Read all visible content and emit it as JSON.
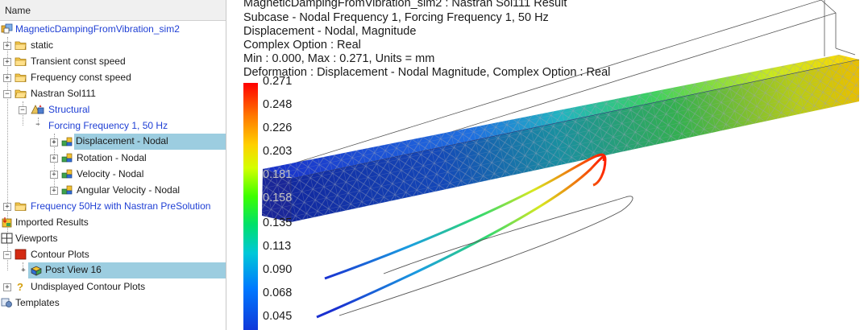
{
  "nav": {
    "header": "Name",
    "items": [
      {
        "label": "MagneticDampingFromVibration_sim2"
      },
      {
        "label": "static"
      },
      {
        "label": "Transient const speed"
      },
      {
        "label": "Frequency const speed"
      },
      {
        "label": "Nastran Sol111"
      },
      {
        "label": "Structural"
      },
      {
        "label": "Forcing Frequency 1, 50 Hz"
      },
      {
        "label": "Displacement - Nodal"
      },
      {
        "label": "Rotation - Nodal"
      },
      {
        "label": "Velocity - Nodal"
      },
      {
        "label": "Angular Velocity - Nodal"
      },
      {
        "label": "Frequency 50Hz with Nastran PreSolution"
      },
      {
        "label": "Imported Results"
      },
      {
        "label": "Viewports"
      },
      {
        "label": "Contour Plots"
      },
      {
        "label": "Post View 16"
      },
      {
        "label": "Undisplayed Contour Plots"
      },
      {
        "label": "Templates"
      }
    ]
  },
  "viewport": {
    "info_lines": [
      "MagneticDampingFromVibration_sim2 : Nastran Sol111 Result",
      "Subcase - Nodal Frequency 1, Forcing Frequency 1, 50 Hz",
      "Displacement - Nodal, Magnitude",
      "Complex Option : Real",
      "Min : 0.000, Max : 0.271, Units = mm",
      "Deformation : Displacement - Nodal Magnitude, Complex Option : Real"
    ],
    "legend_values": [
      "0.271",
      "0.248",
      "0.226",
      "0.203",
      "0.181",
      "0.158",
      "0.135",
      "0.113",
      "0.090",
      "0.068",
      "0.045"
    ]
  },
  "colors": {
    "selection": "#9ccde0",
    "link_blue": "#1f3fd4",
    "contour_plot_red": "#d42a12"
  },
  "icons": {
    "sim": "sim-file-icon",
    "folder": "folder-icon",
    "structural": "structural-solution-icon",
    "result": "result-icon",
    "imported": "imported-results-icon",
    "viewports": "viewports-icon",
    "contour": "contour-plot-icon",
    "postview": "post-view-icon",
    "undisplayed": "question-icon",
    "templates": "templates-icon"
  }
}
